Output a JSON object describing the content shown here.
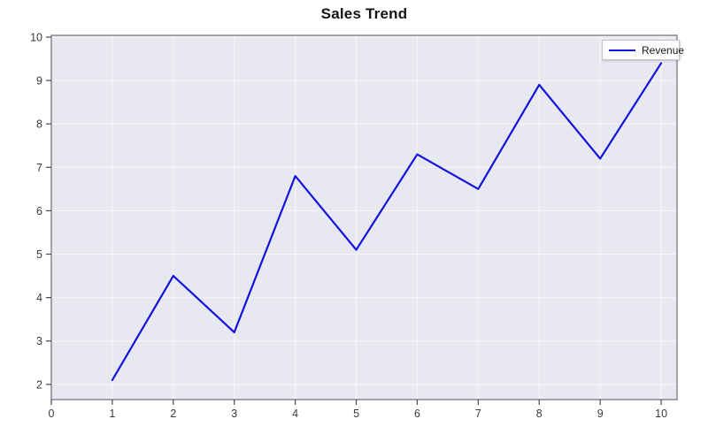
{
  "chart_data": {
    "type": "line",
    "title": "Sales Trend",
    "x": [
      1,
      2,
      3,
      4,
      5,
      6,
      7,
      8,
      9,
      10
    ],
    "series": [
      {
        "name": "Revenue",
        "color": "#1212df",
        "values": [
          2.1,
          4.5,
          3.2,
          6.8,
          5.1,
          7.3,
          6.5,
          8.9,
          7.2,
          9.4
        ]
      }
    ],
    "xlabel": "",
    "ylabel": "",
    "x_ticks": [
      0,
      1,
      2,
      3,
      4,
      5,
      6,
      7,
      8,
      9,
      10
    ],
    "y_ticks": [
      2,
      3,
      4,
      5,
      6,
      7,
      8,
      9,
      10
    ],
    "xlim": [
      0,
      10.26
    ],
    "ylim": [
      1.65,
      10.04
    ],
    "grid": true,
    "legend_position": "top-right",
    "colors": {
      "plot_bg": "#e8e8f0",
      "grid_color": "#f6f6f9",
      "frame_color": "#87878f",
      "tick_color": "#4a4a4a",
      "label_color": "#3a3a3a",
      "title_color": "#141414",
      "figure_bg": "#ffffff"
    }
  }
}
